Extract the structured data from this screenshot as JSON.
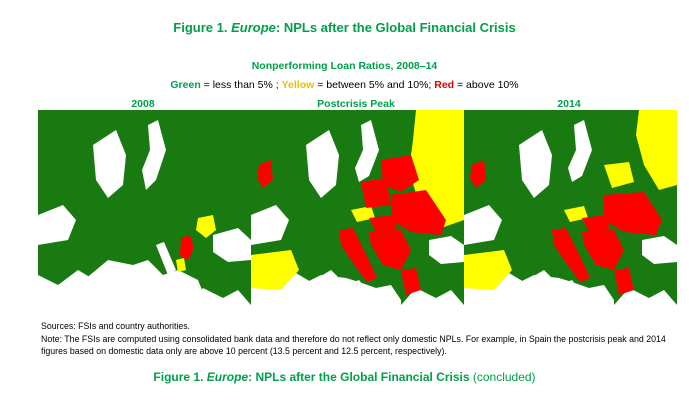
{
  "figure": {
    "title_prefix": "Figure 1.",
    "title_italic": "Europe",
    "title_suffix": ": NPLs after the Global Financial Crisis"
  },
  "subtitle": "Nonperforming Loan Ratios, 2008–14",
  "legend": {
    "green": "Green",
    "green_text": " = less than 5% ; ",
    "yellow": "Yellow",
    "yellow_text": " = between 5% and 10%; ",
    "red": "Red",
    "red_text": " = above 10%",
    "colors": {
      "green": "#1a7a12",
      "yellow": "#ffff00",
      "red": "#ff0000"
    }
  },
  "maps": [
    {
      "label": "2008"
    },
    {
      "label": "Postcrisis Peak"
    },
    {
      "label": "2014"
    }
  ],
  "notes": {
    "sources": "Sources: FSIs and country authorities.",
    "note": "Note: The FSIs are computed using consolidated bank data and therefore do not reflect only domestic NPLs. For example, in Spain the postcrisis peak and 2014 figures based on domestic data only are above 10 percent (13.5 percent and 12.5 percent, respectively)."
  },
  "bottom_title": {
    "prefix": "Figure 1.",
    "italic": "Europe",
    "suffix": ": NPLs after the Global Financial Crisis",
    "concluded": " (concluded)"
  }
}
